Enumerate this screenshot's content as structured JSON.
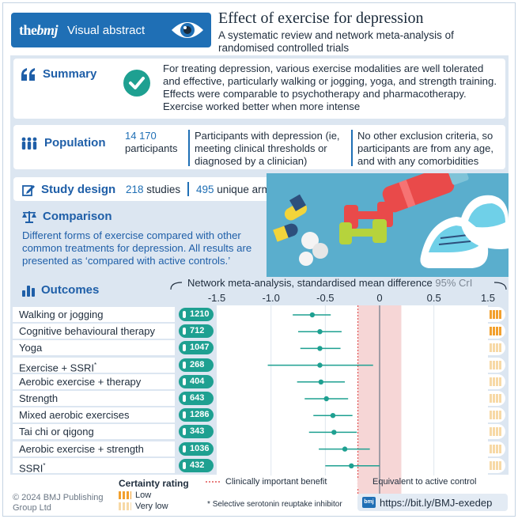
{
  "header": {
    "brand": "thebmj",
    "brand_a": "the",
    "brand_b": "bmj",
    "label": "Visual abstract",
    "title": "Effect of exercise for depression",
    "subtitle": "A systematic review and network meta-analysis of randomised controlled trials"
  },
  "summary": {
    "heading": "Summary",
    "text": "For treating depression, various exercise modalities are well tolerated and effective, particularly walking or jogging, yoga, and strength training. Effects were comparable to psychotherapy and pharmacotherapy. Exercise worked better when more intense"
  },
  "population": {
    "heading": "Population",
    "count": "14 170",
    "count_label": "participants",
    "col1": "Participants with depression (ie, meeting clinical thresholds or diagnosed by a clinician)",
    "col2": "No other exclusion criteria, so participants are from any age, and with any comorbidities"
  },
  "study_design": {
    "heading": "Study design",
    "studies_num": "218",
    "studies_label": "studies",
    "arms_num": "495",
    "arms_label": "unique arms"
  },
  "comparison": {
    "heading": "Comparison",
    "text": "Different forms of exercise compared with other common treatments for depression. All results are presented as ‘compared with active controls.’"
  },
  "outcomes": {
    "heading": "Outcomes",
    "axis_title": "Network meta-analysis, standardised mean difference",
    "ci_label": "95% CrI",
    "ticks": [
      "-1.5",
      "-1.0",
      "-0.5",
      "0",
      "0.5",
      "1.5"
    ]
  },
  "chart_data": {
    "type": "forest",
    "xlabel": "Network meta-analysis, standardised mean difference",
    "xlim": [
      -1.5,
      1.5
    ],
    "ticks": [
      -1.5,
      -1.0,
      -0.5,
      0,
      0.5,
      1.5
    ],
    "clinically_important_benefit": -0.2,
    "equivalence_band": [
      -0.2,
      0.2
    ],
    "rows": [
      {
        "label": "Walking or jogging",
        "n": "1210",
        "estimate": -0.62,
        "lower": -0.8,
        "upper": -0.45,
        "certainty": "low",
        "sup": ""
      },
      {
        "label": "Cognitive behavioural therapy",
        "n": "712",
        "estimate": -0.55,
        "lower": -0.75,
        "upper": -0.35,
        "certainty": "low",
        "sup": ""
      },
      {
        "label": "Yoga",
        "n": "1047",
        "estimate": -0.55,
        "lower": -0.73,
        "upper": -0.36,
        "certainty": "very low",
        "sup": ""
      },
      {
        "label": "Exercise + SSRI",
        "n": "268",
        "estimate": -0.55,
        "lower": -1.03,
        "upper": -0.06,
        "certainty": "very low",
        "sup": "*"
      },
      {
        "label": "Aerobic exercise + therapy",
        "n": "404",
        "estimate": -0.54,
        "lower": -0.76,
        "upper": -0.32,
        "certainty": "very low",
        "sup": ""
      },
      {
        "label": "Strength",
        "n": "643",
        "estimate": -0.49,
        "lower": -0.69,
        "upper": -0.29,
        "certainty": "very low",
        "sup": ""
      },
      {
        "label": "Mixed aerobic exercises",
        "n": "1286",
        "estimate": -0.43,
        "lower": -0.61,
        "upper": -0.25,
        "certainty": "very low",
        "sup": ""
      },
      {
        "label": "Tai chi or qigong",
        "n": "343",
        "estimate": -0.42,
        "lower": -0.65,
        "upper": -0.21,
        "certainty": "very low",
        "sup": ""
      },
      {
        "label": "Aerobic exercise + strength",
        "n": "1036",
        "estimate": -0.32,
        "lower": -0.56,
        "upper": -0.09,
        "certainty": "very low",
        "sup": ""
      },
      {
        "label": "SSRI",
        "n": "432",
        "estimate": -0.26,
        "lower": -0.5,
        "upper": 0.0,
        "certainty": "very low",
        "sup": "*"
      }
    ]
  },
  "legend": {
    "certainty_title": "Certainty rating",
    "low": "Low",
    "very_low": "Very low",
    "clinical": "Clinically important benefit",
    "equivalent": "Equivalent to active control",
    "footnote_mark": "*",
    "footnote": "Selective serotonin reuptake inhibitor"
  },
  "footer": {
    "copyright": "© 2024 BMJ Publishing Group Ltd",
    "url_icon": "bmj",
    "url": "https://bit.ly/BMJ-exedep"
  },
  "colors": {
    "brand_blue": "#1f6fb5",
    "teal": "#1ea091",
    "panel": "#dce6f1",
    "equivalence_band": "#f6d6d6",
    "certainty_orange": "#f2a02e",
    "certainty_light": "#f7d9a6"
  }
}
